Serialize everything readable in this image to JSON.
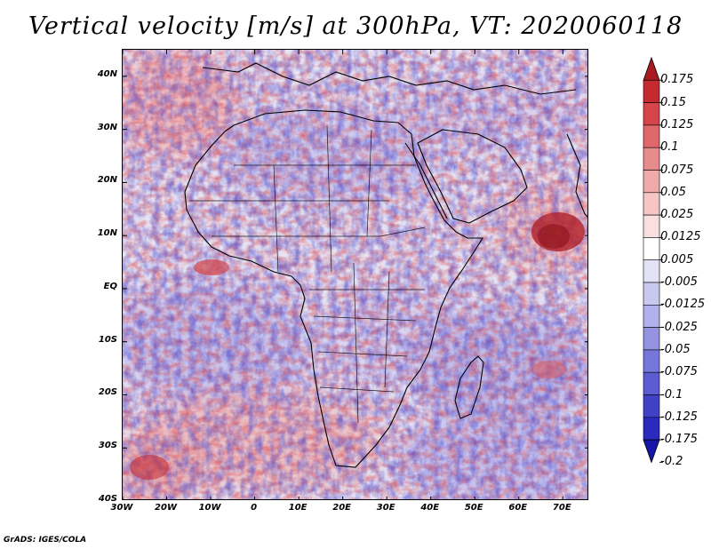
{
  "title": "Vertical velocity [m/s] at 300hPa, VT: 2020060118",
  "map": {
    "region": "Africa and surrounding oceans",
    "lon_range": [
      -30,
      76
    ],
    "lat_range": [
      -40,
      45
    ],
    "lat_labels": [
      "40N",
      "30N",
      "20N",
      "10N",
      "EQ",
      "10S",
      "20S",
      "30S",
      "40S"
    ],
    "lat_values": [
      40,
      30,
      20,
      10,
      0,
      -10,
      -20,
      -30,
      -40
    ],
    "lon_labels": [
      "30W",
      "20W",
      "10W",
      "0",
      "10E",
      "20E",
      "30E",
      "40E",
      "50E",
      "60E",
      "70E"
    ],
    "lon_values": [
      -30,
      -20,
      -10,
      0,
      10,
      20,
      30,
      40,
      50,
      60,
      70
    ]
  },
  "colorbar": {
    "labels": [
      "0.175",
      "0.15",
      "0.125",
      "0.1",
      "0.075",
      "0.05",
      "0.025",
      "0.0125",
      "0.005",
      "-0.005",
      "-0.0125",
      "-0.025",
      "-0.05",
      "-0.075",
      "-0.1",
      "-0.125",
      "-0.175",
      "-0.2"
    ],
    "colors": [
      "#a91b22",
      "#c42a30",
      "#d6454a",
      "#e0686b",
      "#e88b8c",
      "#efaaaa",
      "#f5c6c5",
      "#fadfdf",
      "#ffffff",
      "#e3e3f6",
      "#c9c9f0",
      "#b0b0ea",
      "#9393e2",
      "#7777db",
      "#5b5bd2",
      "#4141c8",
      "#2a2abe",
      "#1515a8"
    ]
  },
  "credit": "GrADS: IGES/COLA"
}
